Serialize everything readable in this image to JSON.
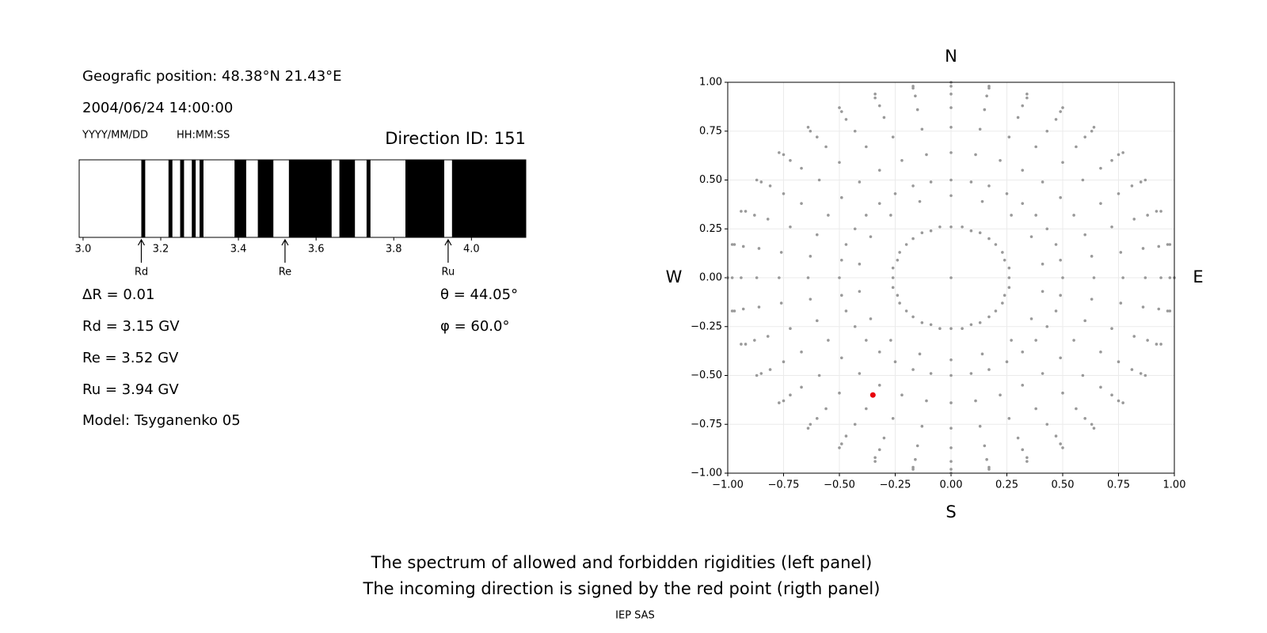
{
  "header": {
    "position": "Geografic position: 48.38°N 21.43°E",
    "datetime": "2004/06/24 14:00:00",
    "date_format": "YYYY/MM/DD",
    "time_format": "HH:MM:SS",
    "direction": "Direction ID: 151"
  },
  "results": [
    "ΔR = 0.01",
    "Rd = 3.15 GV",
    "Re = 3.52 GV",
    "Ru = 3.94 GV",
    "Model: Tsyganenko 05"
  ],
  "angles": [
    "θ = 44.05°",
    "φ = 60.0°"
  ],
  "caption": [
    "The spectrum of allowed and forbidden rigidities (left panel)",
    "The incoming direction is signed by the red point (rigth panel)"
  ],
  "footer": "IEP SAS",
  "chart_data": [
    {
      "type": "spectrum",
      "xlim": [
        2.99,
        4.14
      ],
      "xticks": [
        {
          "value": 3,
          "label": "3.0"
        },
        3.2,
        3.4,
        3.6,
        3.8,
        {
          "value": 4,
          "label": "4.0"
        }
      ],
      "color": "#000000",
      "intervals": [
        [
          3.15,
          3.16
        ],
        [
          3.22,
          3.23
        ],
        [
          3.25,
          3.26
        ],
        [
          3.28,
          3.29
        ],
        [
          3.3,
          3.31
        ],
        [
          3.39,
          3.42
        ],
        [
          3.45,
          3.49
        ],
        [
          3.53,
          3.64
        ],
        [
          3.66,
          3.7
        ],
        [
          3.73,
          3.74
        ],
        [
          3.83,
          3.93
        ],
        [
          3.95,
          4.14
        ]
      ],
      "markers": {
        "labels": [
          "Rd",
          "Re",
          "Ru"
        ],
        "values": [
          3.15,
          3.52,
          3.94
        ]
      }
    },
    {
      "type": "scatter",
      "xlim": [
        -1,
        1
      ],
      "ylim": [
        -1,
        1
      ],
      "grid": true,
      "color": "#999999",
      "xticks": [
        {
          "value": -1,
          "label": "−1.00"
        },
        {
          "value": -0.75,
          "label": "−0.75"
        },
        {
          "value": -0.5,
          "label": "−0.50"
        },
        {
          "value": -0.25,
          "label": "−0.25"
        },
        {
          "value": 0,
          "label": "0.00"
        },
        {
          "value": 0.25,
          "label": "0.25"
        },
        {
          "value": 0.5,
          "label": "0.50"
        },
        {
          "value": 0.75,
          "label": "0.75"
        },
        {
          "value": 1,
          "label": "1.00"
        }
      ],
      "yticks": [
        {
          "value": -1,
          "label": "−1.00"
        },
        {
          "value": -0.75,
          "label": "−0.75"
        },
        {
          "value": -0.5,
          "label": "−0.50"
        },
        {
          "value": -0.25,
          "label": "−0.25"
        },
        {
          "value": 0,
          "label": "0.00"
        },
        {
          "value": 0.25,
          "label": "0.25"
        },
        {
          "value": 0.5,
          "label": "0.50"
        },
        {
          "value": 0.75,
          "label": "0.75"
        },
        {
          "value": 1,
          "label": "1.00"
        }
      ],
      "directions": {
        "top": "N",
        "bottom": "S",
        "left": "W",
        "right": "E"
      },
      "x": [
        0,
        0,
        0,
        0,
        0,
        0,
        0,
        0.09,
        0.11,
        0.13,
        0.15,
        0.16,
        0.17,
        0.17,
        0.17,
        0.22,
        0.26,
        0.3,
        0.32,
        0.34,
        0.34,
        0.25,
        0.32,
        0.38,
        0.43,
        0.47,
        0.49,
        0.5,
        0.32,
        0.41,
        0.5,
        0.56,
        0.6,
        0.63,
        0.64,
        0.38,
        0.49,
        0.59,
        0.67,
        0.72,
        0.75,
        0.77,
        0.43,
        0.55,
        0.67,
        0.75,
        0.81,
        0.85,
        0.87,
        0.47,
        0.6,
        0.72,
        0.82,
        0.88,
        0.92,
        0.94,
        0.49,
        0.63,
        0.76,
        0.86,
        0.93,
        0.97,
        0.98,
        0.5,
        0.64,
        0.77,
        0.87,
        0.94,
        0.98,
        1,
        0.49,
        0.63,
        0.76,
        0.86,
        0.93,
        0.97,
        0.98,
        0.47,
        0.6,
        0.72,
        0.82,
        0.88,
        0.92,
        0.94,
        0.43,
        0.55,
        0.67,
        0.75,
        0.81,
        0.85,
        0.87,
        0.38,
        0.49,
        0.59,
        0.67,
        0.72,
        0.75,
        0.77,
        0.32,
        0.41,
        0.5,
        0.56,
        0.6,
        0.63,
        0.64,
        0.25,
        0.32,
        0.38,
        0.43,
        0.47,
        0.49,
        0.5,
        0.17,
        0.22,
        0.26,
        0.3,
        0.32,
        0.34,
        0.34,
        0.09,
        0.11,
        0.13,
        0.15,
        0.16,
        0.17,
        0.17,
        0,
        0,
        0,
        0,
        0,
        0,
        0,
        -0.09,
        -0.11,
        -0.13,
        -0.15,
        -0.16,
        -0.17,
        -0.17,
        -0.17,
        -0.22,
        -0.26,
        -0.3,
        -0.32,
        -0.34,
        -0.34,
        -0.25,
        -0.32,
        -0.38,
        -0.43,
        -0.47,
        -0.49,
        -0.5,
        -0.32,
        -0.41,
        -0.5,
        -0.56,
        -0.6,
        -0.63,
        -0.64,
        -0.38,
        -0.49,
        -0.59,
        -0.67,
        -0.72,
        -0.75,
        -0.77,
        -0.43,
        -0.55,
        -0.67,
        -0.75,
        -0.81,
        -0.85,
        -0.87,
        -0.47,
        -0.6,
        -0.72,
        -0.82,
        -0.88,
        -0.92,
        -0.94,
        -0.49,
        -0.63,
        -0.76,
        -0.86,
        -0.93,
        -0.97,
        -0.98,
        -0.5,
        -0.64,
        -0.77,
        -0.87,
        -0.94,
        -0.98,
        -1,
        -0.49,
        -0.63,
        -0.76,
        -0.86,
        -0.93,
        -0.97,
        -0.98,
        -0.47,
        -0.6,
        -0.72,
        -0.82,
        -0.88,
        -0.92,
        -0.94,
        -0.43,
        -0.55,
        -0.67,
        -0.75,
        -0.81,
        -0.85,
        -0.87,
        -0.38,
        -0.49,
        -0.59,
        -0.67,
        -0.72,
        -0.75,
        -0.77,
        -0.32,
        -0.41,
        -0.5,
        -0.56,
        -0.6,
        -0.63,
        -0.64,
        -0.25,
        -0.32,
        -0.38,
        -0.43,
        -0.47,
        -0.49,
        -0.5,
        -0.17,
        -0.22,
        -0.26,
        -0.3,
        -0.32,
        -0.34,
        -0.34,
        -0.09,
        -0.11,
        -0.13,
        -0.15,
        -0.16,
        -0.17,
        -0.17,
        0,
        0.05,
        0.09,
        0.13,
        0.17,
        0.2,
        0.23,
        0.24,
        0.26,
        0.26,
        0.26,
        0.24,
        0.23,
        0.2,
        0.17,
        0.13,
        0.09,
        0.05,
        0,
        -0.05,
        -0.09,
        -0.13,
        -0.17,
        -0.2,
        -0.23,
        -0.24,
        -0.26,
        -0.26,
        -0.26,
        -0.24,
        -0.23,
        -0.2,
        -0.17,
        -0.13,
        -0.09,
        -0.05,
        0,
        0.14,
        0.27,
        0.36,
        0.41,
        0.41,
        0.36,
        0.27,
        0.14,
        0,
        -0.14,
        -0.27,
        -0.36,
        -0.41,
        -0.41,
        -0.36,
        -0.27,
        -0.14,
        0
      ],
      "y": [
        0.5,
        0.64,
        0.77,
        0.87,
        0.94,
        0.98,
        1,
        0.49,
        0.63,
        0.76,
        0.86,
        0.93,
        0.97,
        0.98,
        0.47,
        0.6,
        0.72,
        0.82,
        0.88,
        0.92,
        0.94,
        0.43,
        0.55,
        0.67,
        0.75,
        0.81,
        0.85,
        0.87,
        0.38,
        0.49,
        0.59,
        0.67,
        0.72,
        0.75,
        0.77,
        0.32,
        0.41,
        0.5,
        0.56,
        0.6,
        0.63,
        0.64,
        0.25,
        0.32,
        0.38,
        0.43,
        0.47,
        0.49,
        0.5,
        0.17,
        0.22,
        0.26,
        0.3,
        0.32,
        0.34,
        0.34,
        0.09,
        0.11,
        0.13,
        0.15,
        0.16,
        0.17,
        0.17,
        0,
        0,
        0,
        0,
        0,
        0,
        0,
        -0.09,
        -0.11,
        -0.13,
        -0.15,
        -0.16,
        -0.17,
        -0.17,
        -0.17,
        -0.22,
        -0.26,
        -0.3,
        -0.32,
        -0.34,
        -0.34,
        -0.25,
        -0.32,
        -0.38,
        -0.43,
        -0.47,
        -0.49,
        -0.5,
        -0.32,
        -0.41,
        -0.5,
        -0.56,
        -0.6,
        -0.63,
        -0.64,
        -0.38,
        -0.49,
        -0.59,
        -0.67,
        -0.72,
        -0.75,
        -0.77,
        -0.43,
        -0.55,
        -0.67,
        -0.75,
        -0.81,
        -0.85,
        -0.87,
        -0.47,
        -0.6,
        -0.72,
        -0.82,
        -0.88,
        -0.92,
        -0.94,
        -0.49,
        -0.63,
        -0.76,
        -0.86,
        -0.93,
        -0.97,
        -0.98,
        -0.5,
        -0.64,
        -0.77,
        -0.87,
        -0.94,
        -0.98,
        -1,
        -0.49,
        -0.63,
        -0.76,
        -0.86,
        -0.93,
        -0.97,
        -0.98,
        -0.47,
        -0.6,
        -0.72,
        -0.82,
        -0.88,
        -0.92,
        -0.94,
        -0.43,
        -0.55,
        -0.67,
        -0.75,
        -0.81,
        -0.85,
        -0.87,
        -0.38,
        -0.49,
        -0.59,
        -0.67,
        -0.72,
        -0.75,
        -0.77,
        -0.32,
        -0.41,
        -0.5,
        -0.56,
        -0.6,
        -0.63,
        -0.64,
        -0.25,
        -0.32,
        -0.38,
        -0.43,
        -0.47,
        -0.49,
        -0.5,
        -0.17,
        -0.22,
        -0.26,
        -0.3,
        -0.32,
        -0.34,
        -0.34,
        -0.09,
        -0.11,
        -0.13,
        -0.15,
        -0.16,
        -0.17,
        -0.17,
        0,
        0,
        0,
        0,
        0,
        0,
        0,
        0.09,
        0.11,
        0.13,
        0.15,
        0.16,
        0.17,
        0.17,
        0.17,
        0.22,
        0.26,
        0.3,
        0.32,
        0.34,
        0.34,
        0.25,
        0.32,
        0.38,
        0.43,
        0.47,
        0.49,
        0.5,
        0.32,
        0.41,
        0.5,
        0.56,
        0.6,
        0.63,
        0.64,
        0.38,
        0.49,
        0.59,
        0.67,
        0.72,
        0.75,
        0.77,
        0.43,
        0.55,
        0.67,
        0.75,
        0.81,
        0.85,
        0.87,
        0.47,
        0.6,
        0.72,
        0.82,
        0.88,
        0.92,
        0.94,
        0.49,
        0.63,
        0.76,
        0.86,
        0.93,
        0.97,
        0.98,
        0.26,
        0.26,
        0.24,
        0.23,
        0.2,
        0.17,
        0.13,
        0.09,
        0.05,
        0,
        -0.05,
        -0.09,
        -0.13,
        -0.17,
        -0.2,
        -0.23,
        -0.24,
        -0.26,
        -0.26,
        -0.26,
        -0.24,
        -0.23,
        -0.2,
        -0.17,
        -0.13,
        -0.09,
        -0.05,
        0,
        0.05,
        0.09,
        0.13,
        0.17,
        0.2,
        0.23,
        0.24,
        0.26,
        0.42,
        0.39,
        0.32,
        0.21,
        0.07,
        -0.07,
        -0.21,
        -0.32,
        -0.39,
        -0.42,
        -0.39,
        -0.32,
        -0.21,
        -0.07,
        0.07,
        0.21,
        0.32,
        0.39,
        0
      ],
      "highlight": {
        "x": -0.35,
        "y": -0.6,
        "color": "#e8000b"
      }
    }
  ]
}
